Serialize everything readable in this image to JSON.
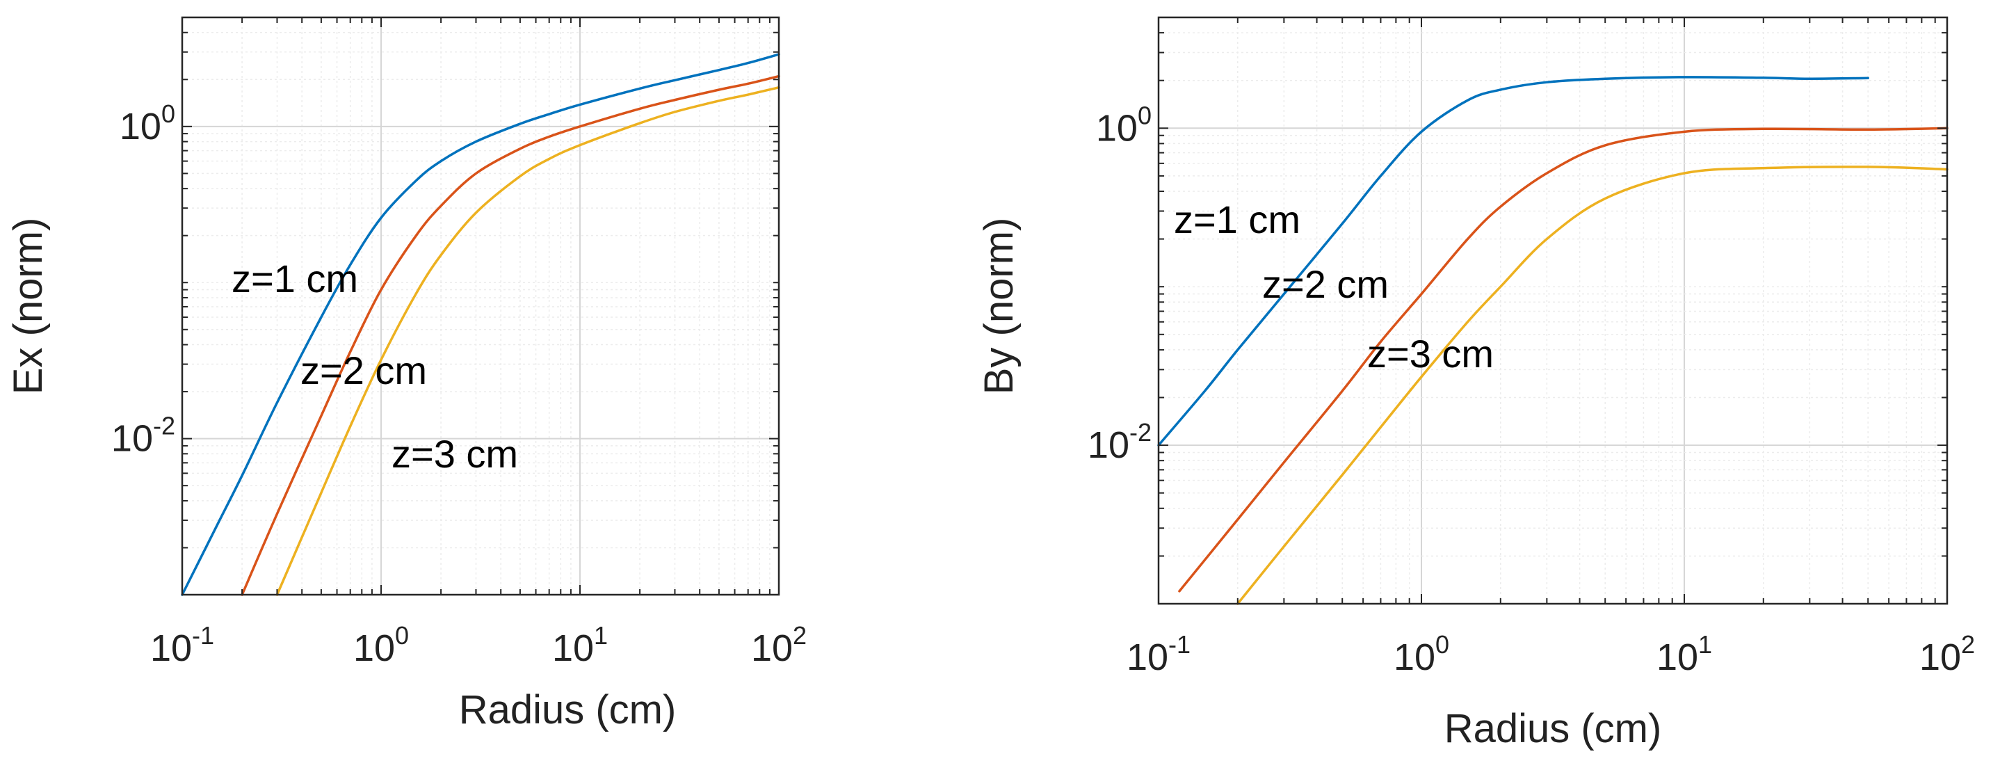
{
  "chart_data": [
    {
      "type": "line",
      "xscale": "log",
      "yscale": "log",
      "xlim": [
        0.1,
        100
      ],
      "ylim": [
        0.001,
        5
      ],
      "xlabel": "Radius (cm)",
      "ylabel": "Ex (norm)",
      "grid": true,
      "xticks": [
        {
          "value": 0.1,
          "base": "10",
          "exp": "-1"
        },
        {
          "value": 1,
          "base": "10",
          "exp": "0"
        },
        {
          "value": 10,
          "base": "10",
          "exp": "1"
        },
        {
          "value": 100,
          "base": "10",
          "exp": "2"
        }
      ],
      "yticks": [
        {
          "value": 0.01,
          "base": "10",
          "exp": "-2"
        },
        {
          "value": 1,
          "base": "10",
          "exp": "0"
        }
      ],
      "series": [
        {
          "name": "z=1 cm",
          "color": "#0072BD",
          "x": [
            0.1,
            0.15,
            0.2,
            0.3,
            0.5,
            0.7,
            1,
            1.5,
            2,
            3,
            5,
            7,
            10,
            20,
            30,
            50,
            70,
            100
          ],
          "y": [
            0.001,
            0.0028,
            0.0058,
            0.017,
            0.06,
            0.13,
            0.26,
            0.45,
            0.6,
            0.8,
            1.04,
            1.2,
            1.38,
            1.75,
            1.98,
            2.3,
            2.55,
            2.9
          ]
        },
        {
          "name": "z=2 cm",
          "color": "#D95319",
          "x": [
            0.2,
            0.3,
            0.5,
            0.7,
            1,
            1.5,
            2,
            3,
            5,
            7,
            10,
            20,
            30,
            50,
            70,
            100
          ],
          "y": [
            0.001,
            0.0033,
            0.014,
            0.036,
            0.09,
            0.2,
            0.31,
            0.5,
            0.72,
            0.86,
            1.0,
            1.3,
            1.48,
            1.72,
            1.88,
            2.1
          ]
        },
        {
          "name": "z=3 cm",
          "color": "#EDB120",
          "x": [
            0.3,
            0.5,
            0.7,
            1,
            1.5,
            2,
            3,
            5,
            7,
            10,
            20,
            30,
            50,
            70,
            100
          ],
          "y": [
            0.001,
            0.0045,
            0.012,
            0.032,
            0.085,
            0.15,
            0.28,
            0.48,
            0.62,
            0.76,
            1.05,
            1.24,
            1.46,
            1.6,
            1.78
          ]
        }
      ],
      "annotations": [
        "z=1 cm",
        "z=2 cm",
        "z=3 cm"
      ]
    },
    {
      "type": "line",
      "xscale": "log",
      "yscale": "log",
      "xlim": [
        0.1,
        100
      ],
      "ylim": [
        0.001,
        5
      ],
      "xlabel": "Radius (cm)",
      "ylabel": "By (norm)",
      "grid": true,
      "xticks": [
        {
          "value": 0.1,
          "base": "10",
          "exp": "-1"
        },
        {
          "value": 1,
          "base": "10",
          "exp": "0"
        },
        {
          "value": 10,
          "base": "10",
          "exp": "1"
        },
        {
          "value": 100,
          "base": "10",
          "exp": "2"
        }
      ],
      "yticks": [
        {
          "value": 0.01,
          "base": "10",
          "exp": "-2"
        },
        {
          "value": 1,
          "base": "10",
          "exp": "0"
        }
      ],
      "series": [
        {
          "name": "z=1 cm",
          "color": "#0072BD",
          "x": [
            0.1,
            0.15,
            0.2,
            0.3,
            0.5,
            0.7,
            1,
            1.5,
            2,
            3,
            5,
            10,
            20,
            30,
            50
          ],
          "y": [
            0.01,
            0.022,
            0.04,
            0.09,
            0.25,
            0.5,
            0.95,
            1.5,
            1.75,
            1.95,
            2.05,
            2.1,
            2.08,
            2.05,
            2.07
          ]
        },
        {
          "name": "z=2 cm",
          "color": "#D95319",
          "x": [
            0.12,
            0.2,
            0.3,
            0.5,
            0.7,
            1,
            1.5,
            2,
            3,
            5,
            10,
            20,
            50,
            100
          ],
          "y": [
            0.0012,
            0.0034,
            0.0078,
            0.022,
            0.045,
            0.09,
            0.2,
            0.32,
            0.52,
            0.78,
            0.95,
            0.99,
            0.98,
            1.0
          ]
        },
        {
          "name": "z=3 cm",
          "color": "#EDB120",
          "x": [
            0.2,
            0.3,
            0.5,
            0.7,
            1,
            1.5,
            2,
            3,
            5,
            10,
            20,
            50,
            100
          ],
          "y": [
            0.001,
            0.0023,
            0.0065,
            0.013,
            0.027,
            0.06,
            0.1,
            0.2,
            0.36,
            0.52,
            0.56,
            0.57,
            0.55
          ]
        }
      ],
      "annotations": [
        "z=1 cm",
        "z=2 cm",
        "z=3 cm"
      ]
    }
  ]
}
